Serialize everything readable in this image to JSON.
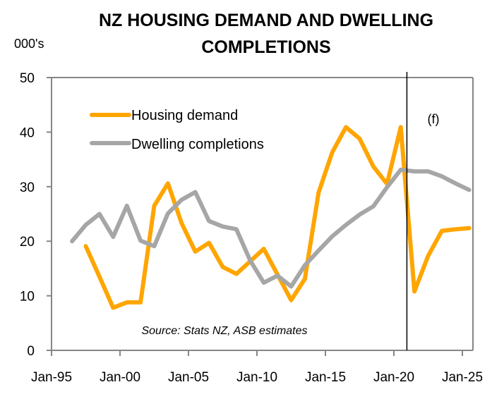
{
  "chart_data": {
    "type": "line",
    "title_lines": [
      "NZ  HOUSING DEMAND AND DWELLING",
      "COMPLETIONS"
    ],
    "ylabel": "000's",
    "xlabel": "",
    "ylim": [
      0,
      50
    ],
    "yticks": [
      0,
      10,
      20,
      30,
      40,
      50
    ],
    "xlim": [
      1995,
      2026.3
    ],
    "xticks": [
      {
        "year": 1995,
        "label": "Jan-95"
      },
      {
        "year": 2000,
        "label": "Jan-00"
      },
      {
        "year": 2005,
        "label": "Jan-05"
      },
      {
        "year": 2010,
        "label": "Jan-10"
      },
      {
        "year": 2015,
        "label": "Jan-15"
      },
      {
        "year": 2020,
        "label": "Jan-20"
      },
      {
        "year": 2025,
        "label": "Jan-25"
      }
    ],
    "grid": false,
    "forecast_marker": {
      "year": 2020.95,
      "label": "(f)"
    },
    "source_note": "Source: Stats NZ, ASB estimates",
    "legend_position": "top-left",
    "series": [
      {
        "name": "Housing demand",
        "color": "#FFA500",
        "x": [
          1997.5,
          1998.5,
          1999.5,
          2000.5,
          2001.5,
          2002.5,
          2003.5,
          2004.5,
          2005.5,
          2006.5,
          2007.5,
          2008.5,
          2009.5,
          2010.5,
          2011.5,
          2012.5,
          2013.5,
          2014.5,
          2015.5,
          2016.5,
          2017.5,
          2018.5,
          2019.5,
          2020.5,
          2021.5,
          2022.5,
          2023.5,
          2024.5,
          2025.5
        ],
        "values": [
          19.1,
          13.5,
          7.8,
          8.8,
          8.8,
          26.5,
          30.6,
          23.3,
          18.1,
          19.7,
          15.3,
          14.0,
          16.3,
          18.6,
          13.9,
          9.2,
          13.1,
          28.9,
          36.3,
          40.9,
          38.8,
          33.7,
          30.5,
          40.9,
          10.8,
          17.3,
          21.9,
          22.2,
          22.4
        ]
      },
      {
        "name": "Dwelling completions",
        "color": "#A6A6A6",
        "x": [
          1996.5,
          1997.5,
          1998.5,
          1999.5,
          2000.5,
          2001.5,
          2002.5,
          2003.5,
          2004.5,
          2005.5,
          2006.5,
          2007.5,
          2008.5,
          2009.5,
          2010.5,
          2011.5,
          2012.5,
          2013.5,
          2014.5,
          2015.5,
          2016.5,
          2017.5,
          2018.5,
          2019.5,
          2020.5,
          2021.5,
          2022.5,
          2023.5,
          2024.5,
          2025.5
        ],
        "values": [
          20.0,
          23.0,
          25.0,
          20.8,
          26.5,
          20.1,
          19.1,
          25.1,
          27.6,
          29.0,
          23.7,
          22.7,
          22.2,
          16.5,
          12.4,
          13.7,
          11.7,
          15.6,
          18.3,
          20.9,
          23.0,
          24.9,
          26.4,
          29.9,
          33.1,
          32.8,
          32.8,
          31.9,
          30.6,
          29.4
        ]
      }
    ]
  }
}
